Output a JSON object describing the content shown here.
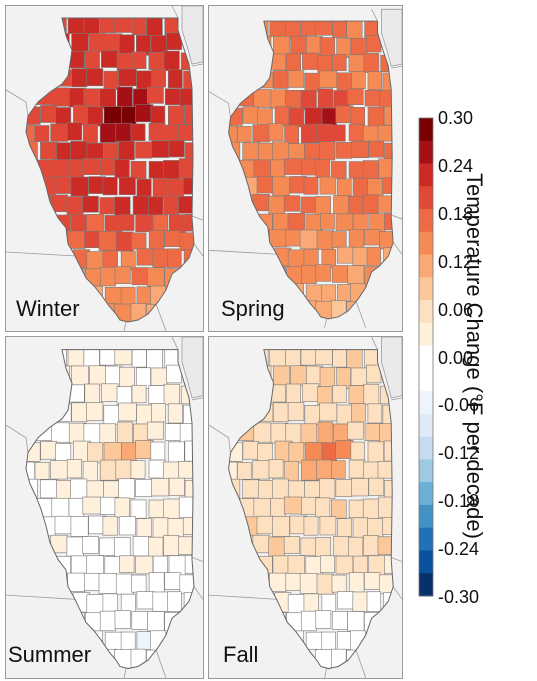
{
  "panels": [
    {
      "label": "Winter",
      "base": 0.21,
      "peak": 0.3,
      "south": 0.12,
      "edge": 0.16
    },
    {
      "label": "Spring",
      "base": 0.16,
      "peak": 0.25,
      "south": 0.1,
      "edge": 0.12
    },
    {
      "label": "Summer",
      "base": 0.015,
      "peak": 0.11,
      "south": -0.04,
      "edge": 0.0
    },
    {
      "label": "Fall",
      "base": 0.06,
      "peak": 0.19,
      "south": -0.03,
      "edge": 0.05
    }
  ],
  "colorbar": {
    "title": "Temperature Change (°F per decade)",
    "ticks": [
      "0.30",
      "0.24",
      "0.18",
      "0.12",
      "0.06",
      "0.00",
      "-0.06",
      "-0.12",
      "-0.18",
      "-0.24",
      "-0.30"
    ],
    "min": -0.3,
    "max": 0.3,
    "colors": [
      "#08306b",
      "#08519c",
      "#2171b5",
      "#4292c6",
      "#6baed6",
      "#9ecae1",
      "#c6dbef",
      "#deebf7",
      "#eef4fb",
      "#ffffff",
      "#ffffff",
      "#fff0dc",
      "#fde0c0",
      "#fcc89a",
      "#fba974",
      "#f68a55",
      "#ee6a45",
      "#e04837",
      "#cc2a24",
      "#a50f15",
      "#7a0103"
    ]
  }
}
